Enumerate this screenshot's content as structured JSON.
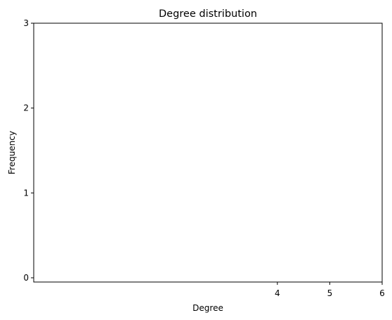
{
  "chart_data": {
    "type": "bar",
    "title": "Degree distribution",
    "xlabel": "Degree",
    "ylabel": "Frequency",
    "xlim": [
      -0.65,
      6
    ],
    "ylim": [
      -0.05,
      3
    ],
    "xticks": [
      4,
      5,
      6
    ],
    "yticks": [
      0,
      1,
      2,
      3
    ],
    "x": [],
    "values": [],
    "grid": false,
    "legend": "none",
    "colors": {
      "frame": "#000000",
      "background": "#ffffff"
    }
  }
}
